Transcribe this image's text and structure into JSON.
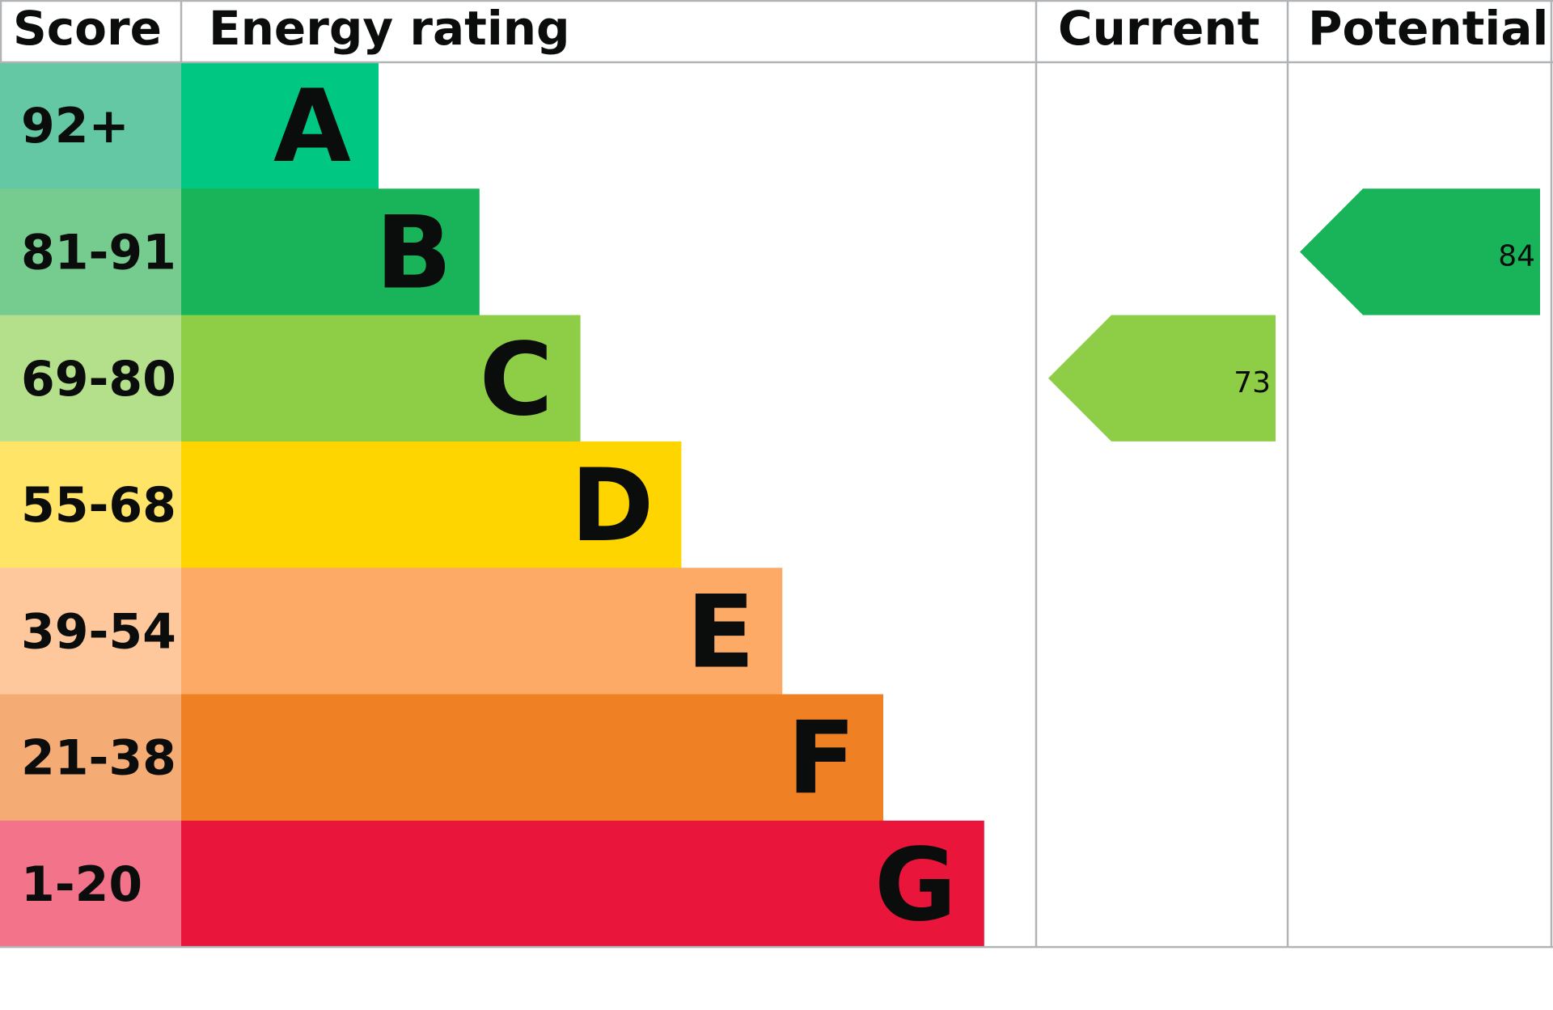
{
  "chart_data": {
    "type": "bar",
    "headers": {
      "score": "Score",
      "rating": "Energy rating",
      "current": "Current",
      "potential": "Potential"
    },
    "bands": [
      {
        "letter": "A",
        "range": "92+",
        "color": "#00c781",
        "score_color": "#64c8a5"
      },
      {
        "letter": "B",
        "range": "81-91",
        "color": "#19b459",
        "score_color": "#76cc8e"
      },
      {
        "letter": "C",
        "range": "69-80",
        "color": "#8dce46",
        "score_color": "#b5e08b"
      },
      {
        "letter": "D",
        "range": "55-68",
        "color": "#ffd500",
        "score_color": "#ffe467"
      },
      {
        "letter": "E",
        "range": "39-54",
        "color": "#fcaa65",
        "score_color": "#fec89c"
      },
      {
        "letter": "F",
        "range": "21-38",
        "color": "#ef8023",
        "score_color": "#f4ac74"
      },
      {
        "letter": "G",
        "range": "1-20",
        "color": "#e9153b",
        "score_color": "#f2738a"
      }
    ],
    "current": {
      "value": 73,
      "band": "C",
      "color": "#8dce46"
    },
    "potential": {
      "value": 84,
      "band": "B",
      "color": "#19b459"
    },
    "grid_color": "#b1b4b6"
  }
}
